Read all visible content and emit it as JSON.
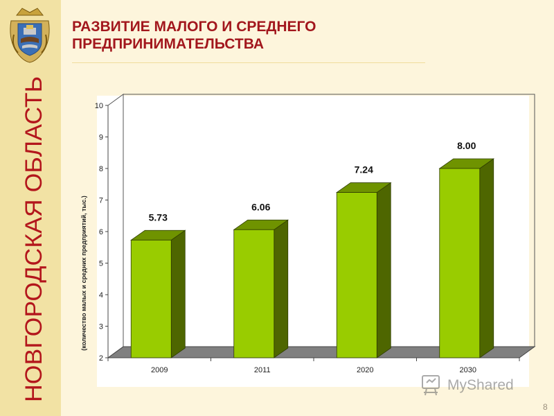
{
  "slide": {
    "title": "РАЗВИТИЕ МАЛОГО И СРЕДНЕГО ПРЕДПРИНИМАТЕЛЬСТВА",
    "title_lines": [
      "РАЗВИТИЕ МАЛОГО И СРЕДНЕГО",
      "ПРЕДПРИНИМАТЕЛЬСТВА"
    ],
    "region_label": "НОВГОРОДСКАЯ ОБЛАСТЬ",
    "page_number": "8",
    "watermark": "MyShared"
  },
  "colors": {
    "title": "#a2171d",
    "region_label": "#b3161c",
    "bar_front": "#99cc00",
    "bar_side": "#4e6600",
    "bar_top": "#6f9300",
    "floor": "#808080",
    "background": "#fdf5dc",
    "sidebar": "#f2e2a4"
  },
  "chart_data": {
    "type": "bar",
    "categories": [
      "2009",
      "2011",
      "2020",
      "2030"
    ],
    "values": [
      5.73,
      6.06,
      7.24,
      8.0
    ],
    "data_labels": [
      "5.73",
      "6.06",
      "7.24",
      "8.00"
    ],
    "title": "",
    "xlabel": "",
    "ylabel": "(количество малых и средних предприятий, тыс.)",
    "ylim": [
      2,
      10
    ],
    "yticks": [
      2,
      3,
      4,
      5,
      6,
      7,
      8,
      9,
      10
    ],
    "grid": false,
    "legend": "none",
    "style": "3d"
  }
}
